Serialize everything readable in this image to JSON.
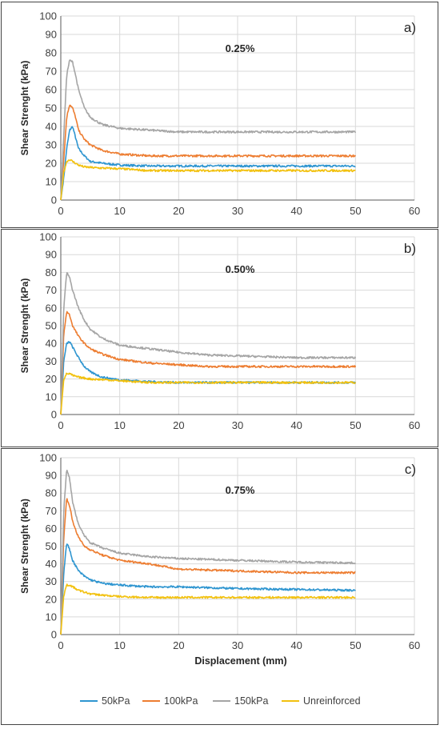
{
  "chart_data": [
    {
      "type": "line",
      "panel_label": "a)",
      "annotation": "0.25%",
      "xlabel": "",
      "ylabel": "Shear Strenght (kPa)",
      "xlim": [
        0,
        60
      ],
      "ylim": [
        0,
        100
      ],
      "xticks": [
        0,
        10,
        20,
        30,
        40,
        50,
        60
      ],
      "yticks": [
        0,
        10,
        20,
        30,
        40,
        50,
        60,
        70,
        80,
        90,
        100
      ],
      "grid": true,
      "series": [
        {
          "name": "50kPa",
          "color": "#2E95D0",
          "x": [
            0,
            0.5,
            1,
            1.5,
            2,
            2.5,
            3,
            4,
            5,
            7,
            10,
            15,
            20,
            30,
            40,
            50
          ],
          "y": [
            0,
            12,
            28,
            38,
            40,
            34,
            28,
            24,
            21,
            20,
            19,
            18.5,
            18.5,
            18.5,
            18.5,
            18.5
          ]
        },
        {
          "name": "100kPa",
          "color": "#ED7D31",
          "x": [
            0,
            0.5,
            1,
            1.5,
            2,
            2.5,
            3,
            4,
            5,
            7,
            10,
            15,
            20,
            30,
            40,
            50
          ],
          "y": [
            0,
            22,
            45,
            52,
            50,
            45,
            38,
            33,
            30,
            27,
            25,
            24,
            24,
            24,
            24,
            24
          ]
        },
        {
          "name": "150kPa",
          "color": "#A5A5A5",
          "x": [
            0,
            0.5,
            1,
            1.5,
            2,
            2.5,
            3,
            4,
            5,
            7,
            10,
            15,
            20,
            30,
            40,
            50
          ],
          "y": [
            0,
            35,
            68,
            76,
            75,
            68,
            60,
            50,
            45,
            41,
            39,
            38,
            37,
            37,
            37,
            37
          ]
        },
        {
          "name": "Unreinforced",
          "color": "#F2C10F",
          "x": [
            0,
            0.5,
            1,
            1.5,
            2,
            3,
            4,
            6,
            10,
            15,
            20,
            30,
            40,
            50
          ],
          "y": [
            0,
            15,
            21,
            22,
            21,
            19,
            18,
            17.5,
            17,
            16,
            16,
            16,
            16,
            16
          ]
        }
      ]
    },
    {
      "type": "line",
      "panel_label": "b)",
      "annotation": "0.50%",
      "xlabel": "",
      "ylabel": "Shear Strenght (kPa)",
      "xlim": [
        0,
        60
      ],
      "ylim": [
        0,
        100
      ],
      "xticks": [
        0,
        10,
        20,
        30,
        40,
        50,
        60
      ],
      "yticks": [
        0,
        10,
        20,
        30,
        40,
        50,
        60,
        70,
        80,
        90,
        100
      ],
      "grid": true,
      "series": [
        {
          "name": "50kPa",
          "color": "#2E95D0",
          "x": [
            0,
            0.5,
            1,
            1.5,
            2,
            3,
            4,
            5,
            7,
            10,
            15,
            20,
            30,
            40,
            50
          ],
          "y": [
            0,
            30,
            40,
            41,
            38,
            32,
            27,
            24,
            21,
            19.5,
            18.5,
            18,
            18,
            18,
            18
          ]
        },
        {
          "name": "100kPa",
          "color": "#ED7D31",
          "x": [
            0,
            0.5,
            1,
            1.5,
            2,
            3,
            4,
            5,
            7,
            10,
            15,
            20,
            25,
            30,
            40,
            50
          ],
          "y": [
            0,
            45,
            58,
            56,
            50,
            44,
            40,
            37,
            34,
            31,
            29,
            28,
            27,
            27,
            27,
            27
          ]
        },
        {
          "name": "150kPa",
          "color": "#A5A5A5",
          "x": [
            0,
            0.5,
            1,
            1.5,
            2,
            3,
            4,
            5,
            7,
            10,
            15,
            20,
            25,
            30,
            40,
            50
          ],
          "y": [
            0,
            60,
            80,
            77,
            70,
            60,
            53,
            48,
            43,
            39,
            37,
            35,
            33.5,
            33,
            32,
            32
          ]
        },
        {
          "name": "Unreinforced",
          "color": "#F2C10F",
          "x": [
            0,
            0.5,
            1,
            1.5,
            2,
            3,
            5,
            8,
            10,
            15,
            20,
            30,
            40,
            50
          ],
          "y": [
            0,
            20,
            23,
            23,
            22,
            21,
            20,
            19.5,
            19,
            18,
            18,
            18,
            18,
            18
          ]
        }
      ]
    },
    {
      "type": "line",
      "panel_label": "c)",
      "annotation": "0.75%",
      "xlabel": "Displacement (mm)",
      "ylabel": "Shear Strenght (kPa)",
      "xlim": [
        0,
        60
      ],
      "ylim": [
        0,
        100
      ],
      "xticks": [
        0,
        10,
        20,
        30,
        40,
        50,
        60
      ],
      "yticks": [
        0,
        10,
        20,
        30,
        40,
        50,
        60,
        70,
        80,
        90,
        100
      ],
      "grid": true,
      "legend": "bottom",
      "series": [
        {
          "name": "50kPa",
          "color": "#2E95D0",
          "x": [
            0,
            0.5,
            1,
            1.5,
            2,
            3,
            4,
            5,
            7,
            10,
            15,
            20,
            30,
            40,
            50
          ],
          "y": [
            0,
            35,
            52,
            48,
            42,
            36,
            33,
            31,
            29,
            28,
            27,
            27,
            26,
            25.5,
            25
          ]
        },
        {
          "name": "100kPa",
          "color": "#ED7D31",
          "x": [
            0,
            0.5,
            1,
            1.5,
            2,
            3,
            4,
            5,
            7,
            10,
            15,
            20,
            30,
            40,
            50
          ],
          "y": [
            0,
            55,
            77,
            73,
            64,
            55,
            50,
            48,
            45,
            42,
            40,
            37,
            36,
            35,
            35
          ]
        },
        {
          "name": "150kPa",
          "color": "#A5A5A5",
          "x": [
            0,
            0.5,
            1,
            1.5,
            2,
            3,
            4,
            5,
            7,
            10,
            15,
            20,
            30,
            40,
            50
          ],
          "y": [
            0,
            70,
            94,
            88,
            75,
            62,
            56,
            52,
            49,
            46,
            44,
            43,
            42,
            41,
            40.5
          ]
        },
        {
          "name": "Unreinforced",
          "color": "#F2C10F",
          "x": [
            0,
            0.5,
            1,
            1.5,
            2,
            3,
            5,
            8,
            10,
            15,
            20,
            30,
            40,
            50
          ],
          "y": [
            0,
            22,
            28,
            28,
            27,
            25,
            23,
            22,
            21.5,
            21,
            21,
            21,
            21,
            21
          ]
        }
      ]
    }
  ]
}
